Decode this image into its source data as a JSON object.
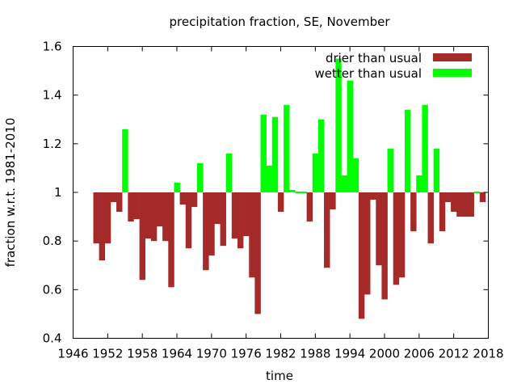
{
  "chart_data": {
    "type": "bar",
    "title": "precipitation fraction, SE, November",
    "xlabel": "time",
    "ylabel": "fraction w.r.t. 1981-2010",
    "xlim": [
      1946,
      2018
    ],
    "ylim": [
      0.4,
      1.6
    ],
    "x_ticks": [
      "1946",
      "1952",
      "1958",
      "1964",
      "1970",
      "1976",
      "1982",
      "1988",
      "1994",
      "2000",
      "2006",
      "2012",
      "2018"
    ],
    "y_ticks": [
      "0.4",
      "0.6",
      "0.8",
      "1",
      "1.2",
      "1.4",
      "1.6"
    ],
    "baseline": 1.0,
    "grid": false,
    "legend_position": "top-right",
    "series": [
      {
        "name": "drier than usual",
        "color": "#a52a2a"
      },
      {
        "name": "wetter than usual",
        "color": "#00ff00"
      }
    ],
    "x": [
      1950,
      1951,
      1952,
      1953,
      1954,
      1955,
      1956,
      1957,
      1958,
      1959,
      1960,
      1961,
      1962,
      1963,
      1964,
      1965,
      1966,
      1967,
      1968,
      1969,
      1970,
      1971,
      1972,
      1973,
      1974,
      1975,
      1976,
      1977,
      1978,
      1979,
      1980,
      1981,
      1982,
      1983,
      1984,
      1985,
      1986,
      1987,
      1988,
      1989,
      1990,
      1991,
      1992,
      1993,
      1994,
      1995,
      1996,
      1997,
      1998,
      1999,
      2000,
      2001,
      2002,
      2003,
      2004,
      2005,
      2006,
      2007,
      2008,
      2009,
      2010,
      2011,
      2012,
      2013,
      2014,
      2015,
      2016,
      2017
    ],
    "values": [
      0.79,
      0.72,
      0.79,
      0.96,
      0.92,
      1.26,
      0.88,
      0.89,
      0.64,
      0.81,
      0.8,
      0.86,
      0.8,
      0.61,
      1.04,
      0.95,
      0.77,
      0.94,
      1.12,
      0.68,
      0.74,
      0.87,
      0.78,
      1.16,
      0.81,
      0.77,
      0.82,
      0.65,
      0.5,
      1.32,
      1.11,
      1.31,
      0.92,
      1.36,
      1.01,
      1.0,
      1.0,
      0.88,
      1.16,
      1.3,
      0.69,
      0.93,
      1.55,
      1.07,
      1.46,
      1.14,
      0.48,
      0.58,
      0.97,
      0.7,
      0.56,
      1.18,
      0.62,
      0.65,
      1.34,
      0.84,
      1.07,
      1.36,
      0.79,
      1.18,
      0.84,
      0.96,
      0.92,
      0.9,
      0.9,
      0.9,
      1.0,
      0.96
    ]
  }
}
